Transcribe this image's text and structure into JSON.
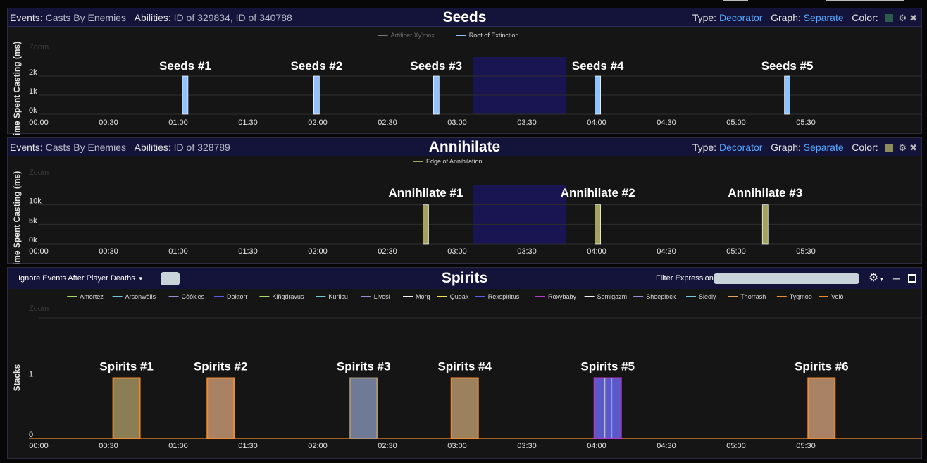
{
  "panels": [
    {
      "header": {
        "events_label": "Events:",
        "events_value": "Casts By Enemies",
        "abilities_label": "Abilities:",
        "abilities_value": "ID of 329834, ID of 340788",
        "title": "Seeds",
        "type_label": "Type:",
        "type_value": "Decorator",
        "graph_label": "Graph:",
        "graph_value": "Separate",
        "color_label": "Color:",
        "swatch_color": "#2f5a4e"
      },
      "chart_data": {
        "type": "bar",
        "ylabel": "Time Spent Casting (ms)",
        "zoom_label": "Zoom",
        "yticks": [
          "0k",
          "1k",
          "2k"
        ],
        "yvals": [
          0,
          1000,
          2000
        ],
        "ylim": [
          0,
          3000
        ],
        "xlim": [
          0,
          380
        ],
        "xticks": [
          "00:00",
          "00:30",
          "01:00",
          "01:30",
          "02:00",
          "02:30",
          "03:00",
          "03:30",
          "04:00",
          "04:30",
          "05:00",
          "05:30"
        ],
        "legend": [
          {
            "name": "Artificer Xy'mox",
            "color": "#777777",
            "dim": true
          },
          {
            "name": "Root of Extinction",
            "color": "#8fc2ff",
            "dim": false
          }
        ],
        "highlight": {
          "x0": 187,
          "x1": 227,
          "color": "#191452"
        },
        "bars": [
          {
            "label": "Seeds #1",
            "x": 63,
            "y": 2000,
            "color": "#8fc2ff"
          },
          {
            "label": "Seeds #2",
            "x": 119.5,
            "y": 2000,
            "color": "#8fc2ff"
          },
          {
            "label": "Seeds #3",
            "x": 171,
            "y": 2000,
            "color": "#8fc2ff"
          },
          {
            "label": "Seeds #4",
            "x": 240.5,
            "y": 2000,
            "color": "#8fc2ff"
          },
          {
            "label": "Seeds #5",
            "x": 322,
            "y": 2000,
            "color": "#8fc2ff"
          }
        ]
      }
    },
    {
      "header": {
        "events_label": "Events:",
        "events_value": "Casts By Enemies",
        "abilities_label": "Abilities:",
        "abilities_value": "ID of 328789",
        "title": "Annihilate",
        "type_label": "Type:",
        "type_value": "Decorator",
        "graph_label": "Graph:",
        "graph_value": "Separate",
        "color_label": "Color:",
        "swatch_color": "#8d8c5a"
      },
      "chart_data": {
        "type": "bar",
        "ylabel": "Time Spent Casting (ms)",
        "zoom_label": "Zoom",
        "yticks": [
          "0k",
          "5k",
          "10k"
        ],
        "yvals": [
          0,
          5000,
          10000
        ],
        "ylim": [
          0,
          15000
        ],
        "xlim": [
          0,
          380
        ],
        "xticks": [
          "00:00",
          "00:30",
          "01:00",
          "01:30",
          "02:00",
          "02:30",
          "03:00",
          "03:30",
          "04:00",
          "04:30",
          "05:00",
          "05:30"
        ],
        "legend": [
          {
            "name": "Edge of Annihilation",
            "color": "#a3a25e",
            "dim": false
          }
        ],
        "highlight": {
          "x0": 187,
          "x1": 227,
          "color": "#191452"
        },
        "bars": [
          {
            "label": "Annihilate #1",
            "x": 166.5,
            "y": 10000,
            "color": "#a3a25e"
          },
          {
            "label": "Annihilate #2",
            "x": 240.5,
            "y": 10000,
            "color": "#a3a25e"
          },
          {
            "label": "Annihilate #3",
            "x": 312.5,
            "y": 10000,
            "color": "#a3a25e"
          }
        ]
      }
    }
  ],
  "spirits": {
    "dropdown_label": "Ignore Events After Player Deaths",
    "title": "Spirits",
    "filter_label": "Filter Expression:",
    "filter_value": "",
    "chart_data": {
      "type": "bar",
      "ylabel": "Stacks",
      "zoom_label": "Zoom",
      "yticks": [
        "0",
        "1"
      ],
      "yvals": [
        0,
        1
      ],
      "ylim": [
        0,
        2
      ],
      "xlim": [
        0,
        380
      ],
      "xticks": [
        "00:00",
        "00:30",
        "01:00",
        "01:30",
        "02:00",
        "02:30",
        "03:00",
        "03:30",
        "04:00",
        "04:30",
        "05:00",
        "05:30"
      ],
      "legend": [
        {
          "name": "Amortez",
          "color": "#a6d96a"
        },
        {
          "name": "Arsonwëlls",
          "color": "#6fc8dc"
        },
        {
          "name": "Côôkies",
          "color": "#9a8bd6"
        },
        {
          "name": "Doktorr",
          "color": "#5a5cf0"
        },
        {
          "name": "Kiñgdravus",
          "color": "#a6d96a"
        },
        {
          "name": "Kuriisu",
          "color": "#6fc8dc"
        },
        {
          "name": "Livesi",
          "color": "#9a8bd6"
        },
        {
          "name": "Mórg",
          "color": "#f2f2f2"
        },
        {
          "name": "Queak",
          "color": "#f0e24a"
        },
        {
          "name": "Rexspiritus",
          "color": "#5a5cf0"
        },
        {
          "name": "Roxybaby",
          "color": "#b43ac8"
        },
        {
          "name": "Semigazm",
          "color": "#f2f2f2"
        },
        {
          "name": "Sheeplock",
          "color": "#9a8bd6"
        },
        {
          "name": "Sledly",
          "color": "#6fc8dc"
        },
        {
          "name": "Thorrash",
          "color": "#e8a05a"
        },
        {
          "name": "Tygmoo",
          "color": "#f08a30"
        },
        {
          "name": "Velô",
          "color": "#f08a30"
        }
      ],
      "bars": [
        {
          "label": "Spirits #1",
          "x0": 32,
          "x1": 43.5,
          "y": 1,
          "fill": "#8a7e55",
          "stroke": "#f08a30"
        },
        {
          "label": "Spirits #2",
          "x0": 72.5,
          "x1": 84,
          "y": 1,
          "fill": "#a98164",
          "stroke": "#f08a30"
        },
        {
          "label": "Spirits #3",
          "x0": 134,
          "x1": 145.5,
          "y": 1,
          "fill": "#6f7b96",
          "stroke": "#a8957a"
        },
        {
          "label": "Spirits #4",
          "x0": 177.5,
          "x1": 189,
          "y": 1,
          "fill": "#9b815e",
          "stroke": "#f08a30"
        },
        {
          "label": "Spirits #5",
          "x0": 239,
          "x1": 250.5,
          "y": 1,
          "fill": "#5b58c8",
          "stroke": "#b43ac8"
        },
        {
          "label": "Spirits #6",
          "x0": 331,
          "x1": 342.5,
          "y": 1,
          "fill": "#a98164",
          "stroke": "#f08a30"
        }
      ],
      "lines": [
        {
          "x": 243.5,
          "color": "#bbbbbb"
        },
        {
          "x": 246.5,
          "color": "#8f9cff"
        }
      ]
    }
  }
}
